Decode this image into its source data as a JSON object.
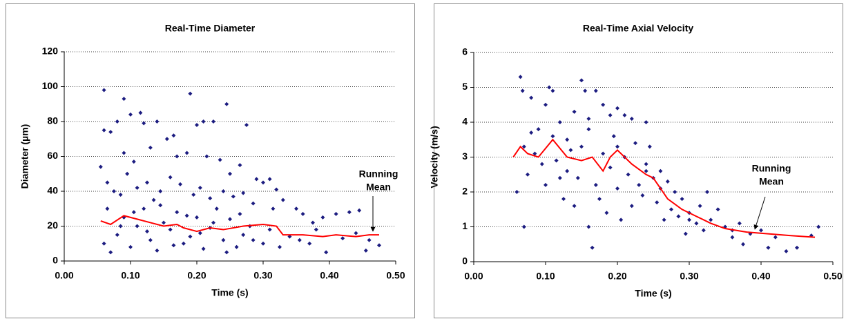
{
  "chart_data": [
    {
      "type": "scatter",
      "title": "Real-Time Diameter",
      "xlabel": "Time (s)",
      "ylabel": "Diameter (µm)",
      "annotation": [
        "Running",
        "Mean"
      ],
      "xlim": [
        0,
        0.5
      ],
      "ylim": [
        0,
        120
      ],
      "xticks": [
        {
          "value": 0,
          "label": "0.00"
        },
        {
          "value": 0.1,
          "label": "0.10"
        },
        {
          "value": 0.2,
          "label": "0.20"
        },
        {
          "value": 0.3,
          "label": "0.30"
        },
        {
          "value": 0.4,
          "label": "0.40"
        },
        {
          "value": 0.5,
          "label": "0.50"
        }
      ],
      "yticks": [
        0,
        20,
        40,
        60,
        80,
        100,
        120
      ],
      "grid": true,
      "series": [
        {
          "color": "#1c1c80",
          "style": "markers",
          "x": [
            0.06,
            0.09,
            0.19,
            0.245,
            0.115,
            0.07,
            0.055,
            0.06,
            0.08,
            0.1,
            0.12,
            0.14,
            0.155,
            0.165,
            0.2,
            0.21,
            0.225,
            0.275,
            0.13,
            0.17,
            0.09,
            0.105,
            0.185,
            0.215,
            0.235,
            0.25,
            0.265,
            0.29,
            0.3,
            0.31,
            0.065,
            0.075,
            0.085,
            0.095,
            0.11,
            0.125,
            0.135,
            0.145,
            0.16,
            0.175,
            0.195,
            0.205,
            0.22,
            0.24,
            0.255,
            0.27,
            0.285,
            0.315,
            0.32,
            0.33,
            0.35,
            0.36,
            0.375,
            0.39,
            0.41,
            0.43,
            0.445,
            0.46,
            0.475,
            0.455,
            0.06,
            0.07,
            0.08,
            0.09,
            0.1,
            0.11,
            0.12,
            0.13,
            0.14,
            0.15,
            0.16,
            0.17,
            0.18,
            0.19,
            0.2,
            0.21,
            0.22,
            0.23,
            0.24,
            0.25,
            0.26,
            0.27,
            0.28,
            0.3,
            0.31,
            0.325,
            0.34,
            0.355,
            0.37,
            0.38,
            0.395,
            0.42,
            0.44,
            0.065,
            0.085,
            0.105,
            0.125,
            0.145,
            0.165,
            0.185,
            0.205,
            0.225,
            0.245,
            0.265,
            0.285
          ],
          "values": [
            98,
            93,
            96,
            90,
            85,
            74,
            54,
            75,
            80,
            84,
            79,
            80,
            70,
            72,
            78,
            80,
            80,
            78,
            65,
            60,
            62,
            57,
            62,
            60,
            58,
            50,
            55,
            47,
            45,
            47,
            45,
            40,
            38,
            50,
            42,
            45,
            35,
            40,
            48,
            44,
            38,
            42,
            36,
            40,
            37,
            39,
            33,
            30,
            41,
            35,
            30,
            27,
            22,
            25,
            27,
            28,
            29,
            12,
            9,
            6,
            10,
            5,
            15,
            25,
            8,
            20,
            30,
            12,
            6,
            22,
            18,
            28,
            10,
            14,
            25,
            7,
            19,
            30,
            12,
            24,
            8,
            15,
            20,
            10,
            18,
            8,
            14,
            12,
            10,
            18,
            5,
            13,
            16,
            30,
            20,
            28,
            17,
            32,
            9,
            26,
            16,
            22,
            5,
            27,
            12
          ]
        },
        {
          "color": "#ff0000",
          "style": "line",
          "x": [
            0.055,
            0.07,
            0.09,
            0.11,
            0.13,
            0.15,
            0.17,
            0.18,
            0.19,
            0.2,
            0.22,
            0.24,
            0.27,
            0.3,
            0.32,
            0.33,
            0.36,
            0.39,
            0.41,
            0.44,
            0.46,
            0.475
          ],
          "values": [
            23,
            21,
            26,
            24,
            22,
            20,
            21,
            19,
            18,
            17,
            19,
            18,
            20,
            21,
            20,
            15,
            15,
            14,
            15,
            14,
            15,
            15
          ]
        }
      ]
    },
    {
      "type": "scatter",
      "title": "Real-Time Axial Velocity",
      "xlabel": "Time (s)",
      "ylabel": "Velocity (m/s)",
      "annotation": [
        "Running",
        "Mean"
      ],
      "xlim": [
        0,
        0.5
      ],
      "ylim": [
        0,
        6
      ],
      "xticks": [
        {
          "value": 0,
          "label": "0.00"
        },
        {
          "value": 0.1,
          "label": "0.10"
        },
        {
          "value": 0.2,
          "label": "0.20"
        },
        {
          "value": 0.3,
          "label": "0.30"
        },
        {
          "value": 0.4,
          "label": "0.40"
        },
        {
          "value": 0.5,
          "label": "0.50"
        }
      ],
      "yticks": [
        0,
        1,
        2,
        3,
        4,
        5,
        6
      ],
      "grid": true,
      "series": [
        {
          "color": "#1c1c80",
          "style": "markers",
          "x": [
            0.065,
            0.068,
            0.07,
            0.08,
            0.09,
            0.1,
            0.105,
            0.11,
            0.12,
            0.13,
            0.14,
            0.15,
            0.155,
            0.16,
            0.17,
            0.18,
            0.19,
            0.2,
            0.21,
            0.22,
            0.24,
            0.06,
            0.07,
            0.075,
            0.085,
            0.095,
            0.1,
            0.11,
            0.115,
            0.125,
            0.13,
            0.135,
            0.14,
            0.145,
            0.15,
            0.16,
            0.165,
            0.17,
            0.175,
            0.18,
            0.185,
            0.19,
            0.195,
            0.2,
            0.205,
            0.21,
            0.215,
            0.22,
            0.225,
            0.23,
            0.235,
            0.24,
            0.245,
            0.25,
            0.255,
            0.26,
            0.265,
            0.27,
            0.275,
            0.28,
            0.285,
            0.29,
            0.295,
            0.3,
            0.31,
            0.315,
            0.32,
            0.325,
            0.33,
            0.34,
            0.35,
            0.36,
            0.37,
            0.375,
            0.385,
            0.4,
            0.41,
            0.42,
            0.435,
            0.45,
            0.47,
            0.48,
            0.08,
            0.12,
            0.16,
            0.2,
            0.24,
            0.26,
            0.3,
            0.36
          ],
          "values": [
            5.3,
            4.9,
            1,
            4.7,
            3.8,
            4.5,
            5,
            4.9,
            4,
            3.5,
            4.3,
            5.2,
            4.9,
            4.1,
            4.9,
            4.5,
            4.2,
            4.4,
            4.2,
            4.1,
            4,
            2,
            3.3,
            2.5,
            3.1,
            2.8,
            2.2,
            3.6,
            2.9,
            1.8,
            2.6,
            3.2,
            1.6,
            2.4,
            3.3,
            1,
            0.4,
            2.2,
            1.8,
            3.1,
            1.4,
            2.7,
            3.6,
            2.1,
            1.2,
            3,
            2.5,
            1.6,
            3.4,
            2.2,
            1.9,
            2.8,
            3.3,
            2.4,
            1.7,
            2.6,
            1.2,
            2.3,
            1.5,
            2,
            1.3,
            1.8,
            0.8,
            1.4,
            1.1,
            1.6,
            0.9,
            2,
            1.2,
            1.5,
            1,
            0.7,
            1.1,
            0.5,
            0.8,
            0.9,
            0.4,
            0.7,
            0.3,
            0.4,
            0.75,
            1,
            3.7,
            2.4,
            3.8,
            3.3,
            2.6,
            2.1,
            1.2,
            0.9
          ]
        },
        {
          "color": "#ff0000",
          "style": "line",
          "x": [
            0.055,
            0.065,
            0.075,
            0.09,
            0.11,
            0.13,
            0.15,
            0.165,
            0.18,
            0.19,
            0.2,
            0.22,
            0.24,
            0.25,
            0.27,
            0.29,
            0.31,
            0.33,
            0.35,
            0.38,
            0.41,
            0.44,
            0.475
          ],
          "values": [
            3.0,
            3.3,
            3.1,
            3.0,
            3.5,
            3.0,
            2.9,
            3.0,
            2.6,
            3.0,
            3.2,
            2.8,
            2.5,
            2.4,
            1.8,
            1.5,
            1.3,
            1.1,
            0.95,
            0.85,
            0.8,
            0.75,
            0.7
          ]
        }
      ]
    }
  ]
}
